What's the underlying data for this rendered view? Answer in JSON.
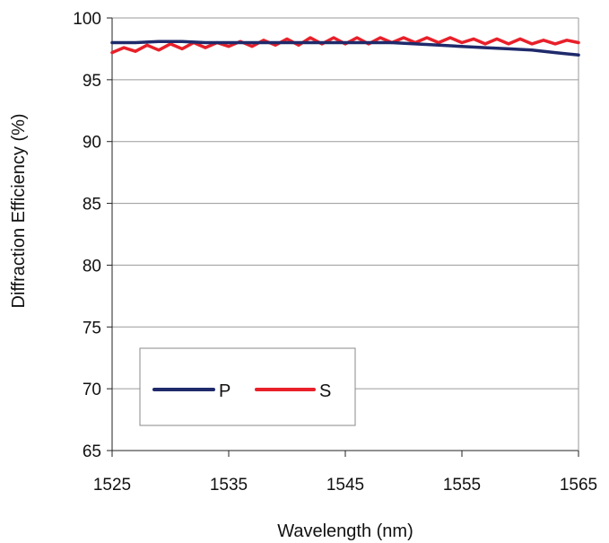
{
  "chart_data": {
    "type": "line",
    "title": "",
    "xlabel": "Wavelength (nm)",
    "ylabel": "Diffraction Efficiency (%)",
    "xlim": [
      1525,
      1565
    ],
    "ylim": [
      65,
      100
    ],
    "x_ticks": [
      "1525",
      "1535",
      "1545",
      "1555",
      "1565"
    ],
    "y_ticks": [
      "65",
      "70",
      "75",
      "80",
      "85",
      "90",
      "95",
      "100"
    ],
    "grid": "horizontal",
    "legend_position": "bottom-left",
    "series": [
      {
        "name": "P",
        "color": "#1f2a6b",
        "x": [
          1525,
          1527,
          1529,
          1531,
          1533,
          1535,
          1537,
          1539,
          1541,
          1543,
          1545,
          1547,
          1549,
          1551,
          1553,
          1555,
          1557,
          1559,
          1561,
          1563,
          1565
        ],
        "y": [
          98.0,
          98.0,
          98.1,
          98.1,
          98.0,
          98.0,
          98.0,
          98.0,
          98.0,
          98.0,
          98.0,
          98.0,
          98.0,
          97.9,
          97.8,
          97.7,
          97.6,
          97.5,
          97.4,
          97.2,
          97.0
        ]
      },
      {
        "name": "S",
        "color": "#e8202a",
        "x": [
          1525,
          1526,
          1527,
          1528,
          1529,
          1530,
          1531,
          1532,
          1533,
          1534,
          1535,
          1536,
          1537,
          1538,
          1539,
          1540,
          1541,
          1542,
          1543,
          1544,
          1545,
          1546,
          1547,
          1548,
          1549,
          1550,
          1551,
          1552,
          1553,
          1554,
          1555,
          1556,
          1557,
          1558,
          1559,
          1560,
          1561,
          1562,
          1563,
          1564,
          1565
        ],
        "y": [
          97.2,
          97.6,
          97.3,
          97.8,
          97.4,
          97.9,
          97.5,
          98.0,
          97.6,
          98.0,
          97.7,
          98.1,
          97.7,
          98.2,
          97.8,
          98.3,
          97.8,
          98.4,
          97.9,
          98.4,
          97.9,
          98.4,
          97.9,
          98.4,
          98.0,
          98.4,
          98.0,
          98.4,
          98.0,
          98.4,
          98.0,
          98.3,
          97.9,
          98.3,
          97.9,
          98.3,
          97.9,
          98.2,
          97.9,
          98.2,
          98.0
        ]
      }
    ]
  }
}
